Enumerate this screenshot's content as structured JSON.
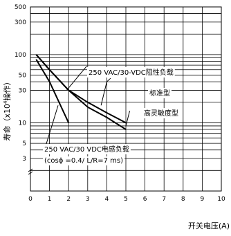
{
  "chart_data": {
    "type": "line",
    "title": "",
    "ylabel": "寿命（x10⁴操作）",
    "ylabel_parts": {
      "prefix": "寿命（x10",
      "sup": "4",
      "suffix": "操作）"
    },
    "xlabel": "开关电压(A)",
    "xlim": [
      0,
      10
    ],
    "ylim": [
      1,
      500
    ],
    "y_scale": "log",
    "grid": true,
    "x_ticks": [
      0,
      1,
      2,
      3,
      4,
      5,
      6,
      7,
      8,
      9,
      10
    ],
    "x_tick_labels": [
      "0",
      "1",
      "2",
      "3",
      "4",
      "5",
      "6",
      "7",
      "8",
      "9",
      "10"
    ],
    "y_ticks": [
      3,
      5,
      10,
      30,
      50,
      100,
      300,
      500
    ],
    "y_tick_labels": [
      "3",
      "5",
      "10",
      "30",
      "50",
      "100",
      "300",
      "500"
    ],
    "series": [
      {
        "name": "标准型",
        "x": [
          0.3,
          1,
          2,
          3,
          4,
          5
        ],
        "y": [
          100,
          60,
          30,
          20,
          14,
          10
        ]
      },
      {
        "name": "高灵敏度型",
        "x": [
          0.3,
          1,
          2,
          3,
          4,
          5
        ],
        "y": [
          100,
          60,
          30,
          17,
          12,
          8
        ]
      },
      {
        "name": "250 VAC/30 VDC电感负载 (cosϕ =0.4/ L/R=7 ms)",
        "x": [
          0.3,
          1,
          2
        ],
        "y": [
          85,
          40,
          10
        ]
      }
    ],
    "annotations": [
      {
        "id": "res",
        "text": "250 VAC/30-VDC阻性负载"
      },
      {
        "id": "std",
        "text": "标准型"
      },
      {
        "id": "hs",
        "text": "高灵敏度型"
      },
      {
        "id": "ind1",
        "text": "250 VAC/30 VDC电感负载"
      },
      {
        "id": "ind2",
        "text": "(cosϕ =0.4/ L/R=7 ms)"
      }
    ]
  }
}
